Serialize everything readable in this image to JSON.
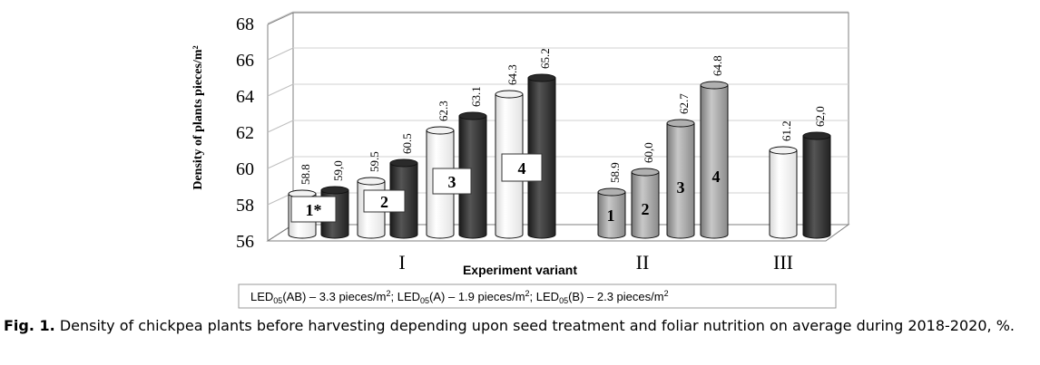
{
  "chart_data": {
    "type": "bar",
    "style": "3d-cylinder",
    "ylabel": "Density of plants pieces/m²",
    "xlabel": "Experiment variant",
    "ylim": [
      56,
      68
    ],
    "yticks": [
      "68",
      "66",
      "64",
      "62",
      "60",
      "58",
      "56"
    ],
    "groups": [
      {
        "label": "I",
        "bars": [
          {
            "value": 58.8,
            "label": "58.8",
            "color": "white"
          },
          {
            "value": 59.0,
            "label": "59,0",
            "color": "dark"
          },
          {
            "value": 59.5,
            "label": "59.5",
            "color": "white"
          },
          {
            "value": 60.5,
            "label": "60.5",
            "color": "dark"
          },
          {
            "value": 62.3,
            "label": "62.3",
            "color": "white"
          },
          {
            "value": 63.1,
            "label": "63.1",
            "color": "dark"
          },
          {
            "value": 64.3,
            "label": "64.3",
            "color": "white"
          },
          {
            "value": 65.2,
            "label": "65.2",
            "color": "dark"
          }
        ]
      },
      {
        "label": "II",
        "bars": [
          {
            "value": 58.9,
            "label": "58.9",
            "color": "gray"
          },
          {
            "value": 60.0,
            "label": "60,0",
            "color": "gray"
          },
          {
            "value": 62.7,
            "label": "62.7",
            "color": "gray"
          },
          {
            "value": 64.8,
            "label": "64.8",
            "color": "gray"
          }
        ]
      },
      {
        "label": "III",
        "bars": [
          {
            "value": 61.2,
            "label": "61.2",
            "color": "white"
          },
          {
            "value": 62.0,
            "label": "62,0",
            "color": "dark"
          }
        ]
      }
    ],
    "boxed_annotations": [
      "1*",
      "2",
      "3",
      "4"
    ],
    "bar_annotations": [
      "1",
      "2",
      "3",
      "4"
    ],
    "lsd": {
      "prefix": "LED",
      "sub": "05",
      "entries": [
        {
          "name": "(AB)",
          "value": " – 3.3 pieces/m",
          "sup": "2",
          "sep": "; "
        },
        {
          "name": "(A)",
          "value": " – 1.9 pieces/m",
          "sup": "2",
          "sep": "; "
        },
        {
          "name": "(B)",
          "value": " – 2.3 pieces/m",
          "sup": "2",
          "sep": ""
        }
      ]
    }
  },
  "caption": {
    "label": "Fig. 1.",
    "text": " Density of chickpea plants before harvesting depending upon seed treatment and foliar nutrition on average during 2018-2020, %."
  },
  "colors": {
    "white_bar": "#ffffff",
    "dark_bar": "#333333",
    "gray_bar": "#9a9a9a"
  }
}
